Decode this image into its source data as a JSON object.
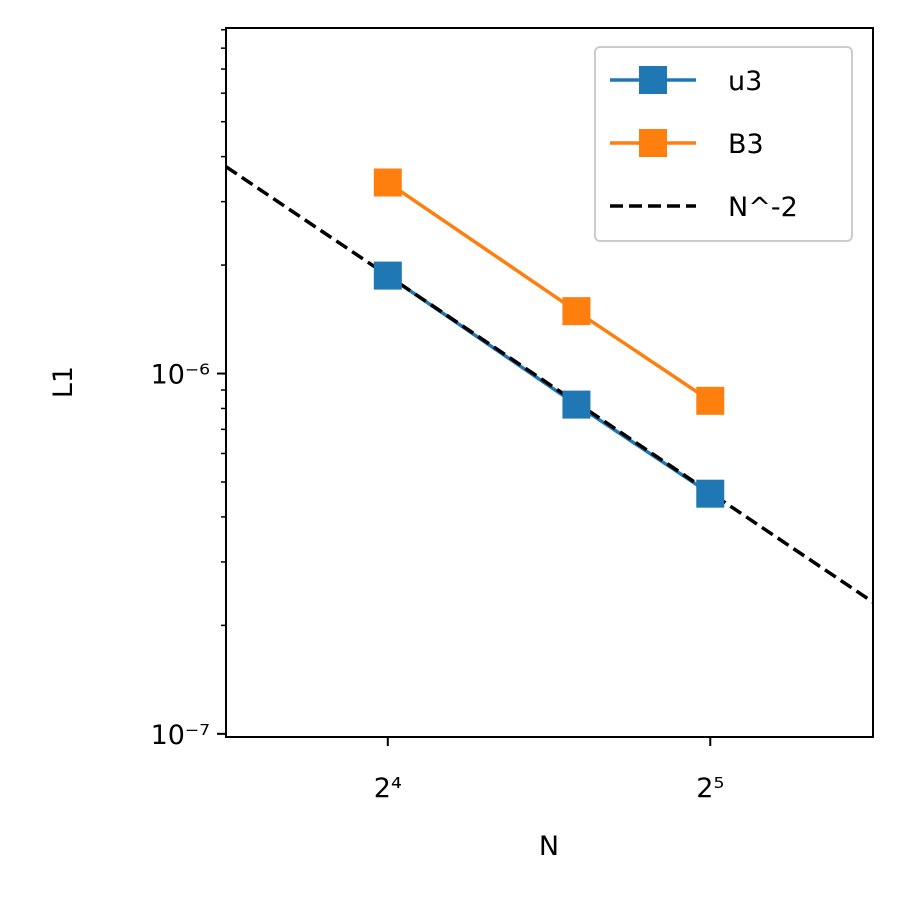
{
  "chart_data": {
    "type": "line",
    "xlabel": "N",
    "ylabel": "L1",
    "xscale": "log2",
    "yscale": "log10",
    "xlim": [
      11.3,
      45.4
    ],
    "ylim": [
      9.8e-08,
      9.1e-06
    ],
    "xticks": [
      {
        "value": 16,
        "label": "2⁴"
      },
      {
        "value": 32,
        "label": "2⁵"
      }
    ],
    "yticks": [
      {
        "value": 1e-07,
        "label": "10⁻⁷"
      },
      {
        "value": 1e-06,
        "label": "10⁻⁶"
      }
    ],
    "yminor_ticks": [
      2e-07,
      3e-07,
      4e-07,
      5e-07,
      6e-07,
      7e-07,
      8e-07,
      9e-07,
      2e-06,
      3e-06,
      4e-06,
      5e-06,
      6e-06,
      7e-06,
      8e-06,
      9e-06
    ],
    "legend": "upper right",
    "series": [
      {
        "name": "u3",
        "color": "#1f77b4",
        "marker": "square",
        "linestyle": "solid",
        "x": [
          16,
          24,
          32
        ],
        "values": [
          1.87e-06,
          8.2e-07,
          4.64e-07
        ]
      },
      {
        "name": "B3",
        "color": "#ff7f0e",
        "marker": "square",
        "linestyle": "solid",
        "x": [
          16,
          24,
          32
        ],
        "values": [
          3.39e-06,
          1.49e-06,
          8.4e-07
        ]
      },
      {
        "name": "N^-2",
        "color": "#000000",
        "marker": "none",
        "linestyle": "dashed",
        "x": [
          11.3,
          45.4
        ],
        "values": [
          3.75e-06,
          2.32e-07
        ]
      }
    ]
  }
}
